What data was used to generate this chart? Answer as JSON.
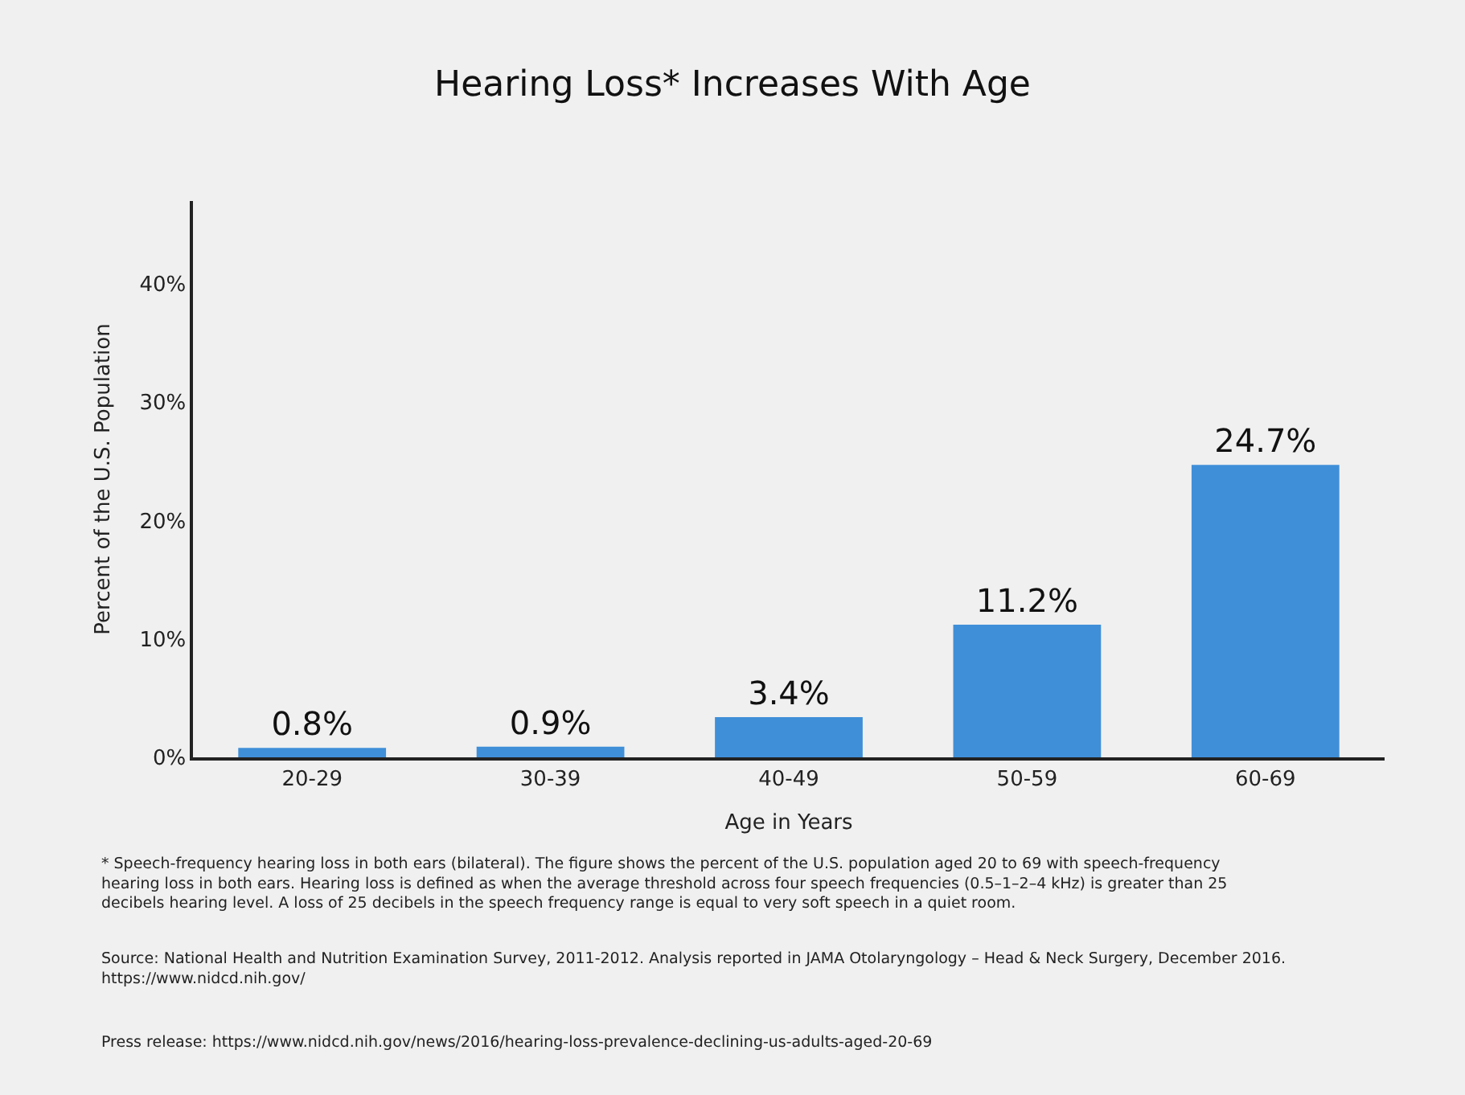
{
  "chart_data": {
    "type": "bar",
    "title": "Hearing Loss* Increases With Age",
    "xlabel": "Age in Years",
    "ylabel": "Percent of the U.S. Population",
    "categories": [
      "20-29",
      "30-39",
      "40-49",
      "50-59",
      "60-69"
    ],
    "values": [
      0.8,
      0.9,
      3.4,
      11.2,
      24.7
    ],
    "value_labels": [
      "0.8%",
      "0.9%",
      "3.4%",
      "11.2%",
      "24.7%"
    ],
    "color": "#3f8fd8",
    "ylim": [
      0,
      47
    ],
    "yticks": [
      {
        "value": 0,
        "label": "0%"
      },
      {
        "value": 10,
        "label": "10%"
      },
      {
        "value": 20,
        "label": "20%"
      },
      {
        "value": 30,
        "label": "30%"
      },
      {
        "value": 40,
        "label": "40%"
      }
    ],
    "grid": false,
    "legend": false,
    "annotations": [
      "* Speech-frequency hearing loss in both ears (bilateral). The figure shows the percent of the U.S. population aged 20 to 69 with speech-frequency hearing loss in both ears. Hearing loss is defined as when the average threshold across four speech frequencies (0.5–1–2–4 kHz) is greater than 25 decibels hearing level. A loss of 25 decibels in the speech frequency range is equal to very soft speech in a quiet room.",
      "Source: National Health and Nutrition Examination Survey, 2011-2012. Analysis reported in JAMA Otolaryngology – Head & Neck Surgery, December 2016. https://www.nidcd.nih.gov/",
      "Press release: https://www.nidcd.nih.gov/news/2016/hearing-loss-prevalence-declining-us-adults-aged-20-69"
    ]
  }
}
